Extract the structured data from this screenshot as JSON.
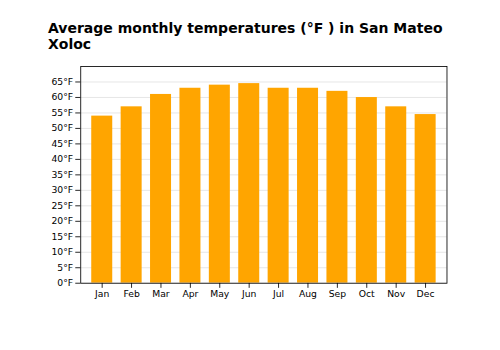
{
  "chart_data": {
    "type": "bar",
    "title": "Average monthly temperatures (°F ) in San Mateo Xoloc",
    "categories": [
      "Jan",
      "Feb",
      "Mar",
      "Apr",
      "May",
      "Jun",
      "Jul",
      "Aug",
      "Sep",
      "Oct",
      "Nov",
      "Dec"
    ],
    "values": [
      54,
      57,
      61,
      63,
      64,
      64.5,
      63,
      63,
      62,
      60,
      57,
      54.5
    ],
    "color": "#FFA500",
    "ylim": [
      0,
      70
    ],
    "yticks": [
      {
        "value": 0,
        "label": "0°F"
      },
      {
        "value": 5,
        "label": "5°F"
      },
      {
        "value": 10,
        "label": "10°F"
      },
      {
        "value": 15,
        "label": "15°F"
      },
      {
        "value": 20,
        "label": "20°F"
      },
      {
        "value": 25,
        "label": "25°F"
      },
      {
        "value": 30,
        "label": "30°F"
      },
      {
        "value": 35,
        "label": "35°F"
      },
      {
        "value": 40,
        "label": "40°F"
      },
      {
        "value": 45,
        "label": "45°F"
      },
      {
        "value": 50,
        "label": "50°F"
      },
      {
        "value": 55,
        "label": "55°F"
      },
      {
        "value": 60,
        "label": "60°F"
      },
      {
        "value": 65,
        "label": "65°F"
      }
    ],
    "grid": true
  }
}
